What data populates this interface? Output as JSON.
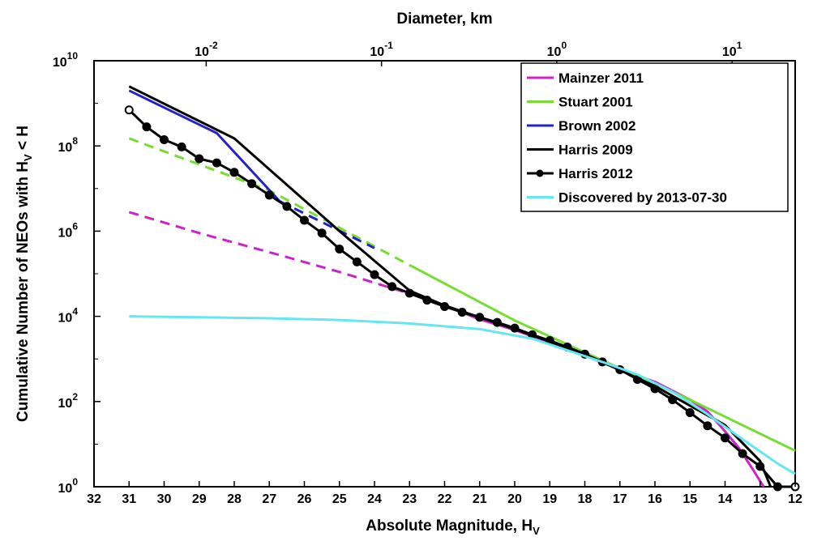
{
  "chart_data": {
    "type": "line",
    "xlabel": "Absolute Magnitude, H",
    "xlabel_sub": "V",
    "ylabel": "Cumulative Number of NEOs with H",
    "ylabel_sub": "V",
    "ylabel_suffix": " < H",
    "top_xlabel": "Diameter, km",
    "x_axis": {
      "reversed": true,
      "range": [
        32,
        12
      ],
      "ticks": [
        32,
        31,
        30,
        29,
        28,
        27,
        26,
        25,
        24,
        23,
        22,
        21,
        20,
        19,
        18,
        17,
        16,
        15,
        14,
        13,
        12
      ]
    },
    "y_axis": {
      "scale": "log",
      "range": [
        1,
        10000000000
      ],
      "ticks": [
        {
          "base": "10",
          "exp": "0"
        },
        {
          "base": "10",
          "exp": "2"
        },
        {
          "base": "10",
          "exp": "4"
        },
        {
          "base": "10",
          "exp": "6"
        },
        {
          "base": "10",
          "exp": "8"
        },
        {
          "base": "10",
          "exp": "10"
        }
      ]
    },
    "top_axis": {
      "ticks": [
        {
          "base": "10",
          "exp": "-2",
          "at_h": 28.8
        },
        {
          "base": "10",
          "exp": "-1",
          "at_h": 23.8
        },
        {
          "base": "10",
          "exp": "0",
          "at_h": 18.8
        },
        {
          "base": "10",
          "exp": "1",
          "at_h": 13.8
        }
      ]
    },
    "legend_position": "top-right",
    "series": [
      {
        "name": "Mainzer 2011",
        "color": "#cc22cc",
        "width": 3,
        "segments": [
          {
            "style": "dashed",
            "points": [
              [
                31,
                2800000
              ],
              [
                29,
                900000
              ],
              [
                27,
                320000
              ],
              [
                25,
                110000
              ],
              [
                23,
                34000
              ],
              [
                22,
                18000
              ]
            ]
          },
          {
            "style": "solid",
            "points": [
              [
                22,
                18000
              ],
              [
                21,
                8500
              ],
              [
                20,
                4800
              ],
              [
                19,
                2400
              ],
              [
                18,
                1200
              ],
              [
                17,
                560
              ],
              [
                16,
                290
              ],
              [
                15,
                110
              ],
              [
                14.5,
                58
              ],
              [
                14,
                20
              ],
              [
                13.6,
                8
              ],
              [
                13.2,
                2.5
              ],
              [
                12.9,
                1
              ]
            ]
          }
        ]
      },
      {
        "name": "Stuart 2001",
        "color": "#77dd33",
        "width": 3,
        "segments": [
          {
            "style": "dashed",
            "points": [
              [
                31,
                150000000
              ],
              [
                27,
                9000000
              ],
              [
                23,
                160000
              ]
            ]
          },
          {
            "style": "solid",
            "points": [
              [
                23,
                160000
              ],
              [
                20,
                8000
              ],
              [
                17,
                600
              ],
              [
                15,
                110
              ],
              [
                12,
                7
              ]
            ]
          }
        ]
      },
      {
        "name": "Brown 2002",
        "color": "#2222cc",
        "width": 3,
        "segments": [
          {
            "style": "solid",
            "points": [
              [
                31,
                2000000000
              ],
              [
                28.5,
                200000000
              ],
              [
                26.7,
                5000000
              ]
            ]
          },
          {
            "style": "dashed",
            "points": [
              [
                26.7,
                5000000
              ],
              [
                24,
                400000
              ]
            ]
          }
        ]
      },
      {
        "name": "Harris 2009",
        "color": "#000000",
        "width": 3,
        "segments": [
          {
            "style": "solid",
            "points": [
              [
                31,
                2500000000
              ],
              [
                28,
                150000000
              ],
              [
                25,
                1000000
              ],
              [
                23,
                40000
              ],
              [
                22,
                18000
              ],
              [
                20,
                5000
              ],
              [
                18,
                1300
              ],
              [
                16,
                230
              ],
              [
                14,
                28
              ],
              [
                13,
                4
              ],
              [
                12.7,
                1
              ]
            ]
          }
        ]
      },
      {
        "name": "Harris 2012",
        "color": "#000000",
        "width": 3,
        "markers": true,
        "first_open": true,
        "segments": [
          {
            "style": "solid",
            "points": [
              [
                31,
                700000000
              ],
              [
                30.5,
                280000000
              ],
              [
                30,
                140000000
              ],
              [
                29.5,
                95000000
              ],
              [
                29,
                50000000
              ],
              [
                28.5,
                40000000
              ],
              [
                28,
                24000000
              ],
              [
                27.5,
                13000000
              ],
              [
                27,
                7000000
              ],
              [
                26.5,
                3800000
              ],
              [
                26,
                1800000
              ],
              [
                25.5,
                900000
              ],
              [
                25,
                380000
              ],
              [
                24.5,
                190000
              ],
              [
                24,
                95000
              ],
              [
                23.5,
                50000
              ],
              [
                23,
                35000
              ],
              [
                22.5,
                24000
              ],
              [
                22,
                17000
              ],
              [
                21.5,
                12500
              ],
              [
                21,
                9500
              ],
              [
                20.5,
                7200
              ],
              [
                20,
                5300
              ],
              [
                19.5,
                3700
              ],
              [
                19,
                2700
              ],
              [
                18.5,
                1900
              ],
              [
                18,
                1300
              ],
              [
                17.5,
                850
              ],
              [
                17,
                560
              ],
              [
                16.5,
                330
              ],
              [
                16,
                200
              ],
              [
                15.5,
                110
              ],
              [
                15,
                55
              ],
              [
                14.5,
                27
              ],
              [
                14,
                14
              ],
              [
                13.5,
                6
              ],
              [
                13,
                3
              ],
              [
                12.5,
                1
              ],
              [
                12,
                1
              ]
            ]
          }
        ]
      },
      {
        "name": "Discovered by 2013-07-30",
        "color": "#66e6f0",
        "width": 3,
        "segments": [
          {
            "style": "solid",
            "points": [
              [
                31,
                10000
              ],
              [
                29,
                9500
              ],
              [
                27,
                9000
              ],
              [
                25,
                8200
              ],
              [
                23,
                6800
              ],
              [
                21,
                5000
              ],
              [
                19.5,
                3000
              ],
              [
                18.5,
                1600
              ],
              [
                17.5,
                850
              ],
              [
                16.5,
                430
              ],
              [
                15.5,
                170
              ],
              [
                14.5,
                50
              ],
              [
                13.5,
                13
              ],
              [
                12.5,
                3.5
              ],
              [
                12,
                2
              ]
            ]
          }
        ]
      }
    ]
  }
}
